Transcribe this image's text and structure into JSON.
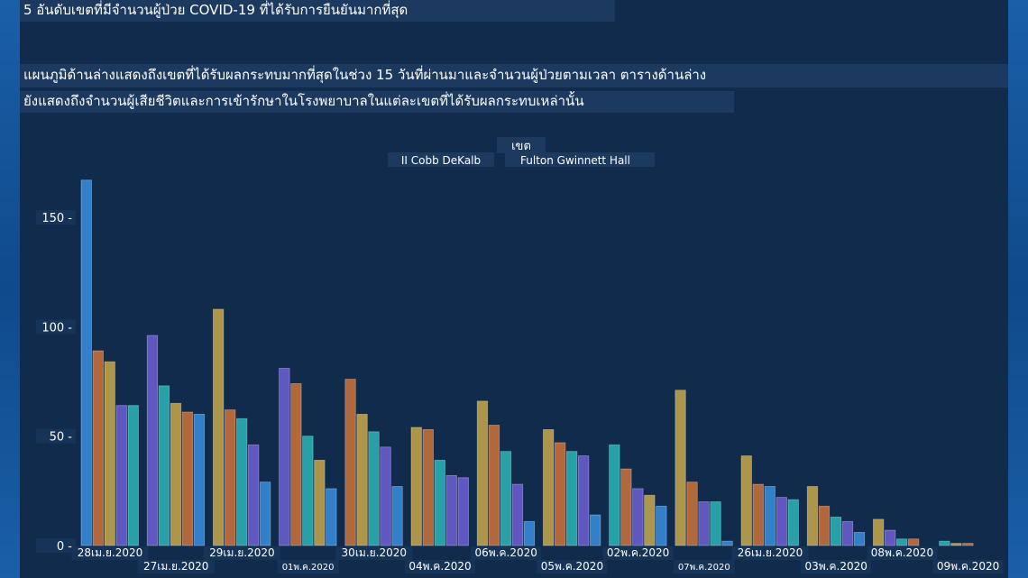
{
  "header": {
    "title": "5 อันดับเขตที่มีจำนวนผู้ป่วย COVID-19 ที่ได้รับการยืนยันมากที่สุด",
    "description_line1": "แผนภูมิด้านล่างแสดงถึงเขตที่ได้รับผลกระทบมากที่สุดในช่วง 15 วันที่ผ่านมาและจำนวนผู้ป่วยตามเวลา ตารางด้านล่าง",
    "description_line2": "ยังแสดงถึงจำนวนผู้เสียชีวิตและการเข้ารักษาในโรงพยาบาลในแต่ละเขตที่ได้รับผลกระทบเหล่านั้น"
  },
  "colors": {
    "blue": "#3a8fe0",
    "orange": "#d0733a",
    "yellow": "#c9a94a",
    "purple": "#6f5fd6",
    "teal": "#2bb5b8"
  },
  "chart_data": {
    "type": "bar",
    "legend_title": "เขต",
    "legend_labels": [
      "II Cobb DeKalb",
      "Fulton Gwinnett Hall"
    ],
    "legend_placement": "top-center",
    "ylim": [
      0,
      170
    ],
    "yticks": [
      0,
      50,
      100,
      150
    ],
    "grid": false,
    "categories": [
      "28เม.ย.2020",
      "27เม.ย.2020",
      "29เม.ย.2020",
      "01พ.ค.2020",
      "30เม.ย.2020",
      "04พ.ค.2020",
      "06พ.ค.2020",
      "05พ.ค.2020",
      "02พ.ค.2020",
      "07พ.ค.2020",
      "26เม.ย.2020",
      "03พ.ค.2020",
      "08พ.ค.2020",
      "09พ.ค.2020"
    ],
    "groups": [
      [
        {
          "c": "blue",
          "v": 167
        },
        {
          "c": "orange",
          "v": 89
        },
        {
          "c": "yellow",
          "v": 84
        },
        {
          "c": "purple",
          "v": 64
        },
        {
          "c": "teal",
          "v": 64
        }
      ],
      [
        {
          "c": "purple",
          "v": 96
        },
        {
          "c": "teal",
          "v": 73
        },
        {
          "c": "yellow",
          "v": 65
        },
        {
          "c": "orange",
          "v": 61
        },
        {
          "c": "blue",
          "v": 60
        }
      ],
      [
        {
          "c": "yellow",
          "v": 108
        },
        {
          "c": "orange",
          "v": 62
        },
        {
          "c": "teal",
          "v": 58
        },
        {
          "c": "purple",
          "v": 46
        },
        {
          "c": "blue",
          "v": 29
        }
      ],
      [
        {
          "c": "purple",
          "v": 81
        },
        {
          "c": "orange",
          "v": 74
        },
        {
          "c": "teal",
          "v": 50
        },
        {
          "c": "yellow",
          "v": 39
        },
        {
          "c": "blue",
          "v": 26
        }
      ],
      [
        {
          "c": "orange",
          "v": 76
        },
        {
          "c": "yellow",
          "v": 60
        },
        {
          "c": "teal",
          "v": 52
        },
        {
          "c": "purple",
          "v": 45
        },
        {
          "c": "blue",
          "v": 27
        }
      ],
      [
        {
          "c": "yellow",
          "v": 54
        },
        {
          "c": "orange",
          "v": 53
        },
        {
          "c": "teal",
          "v": 39
        },
        {
          "c": "purple",
          "v": 32
        },
        {
          "c": "purple",
          "v": 31
        }
      ],
      [
        {
          "c": "yellow",
          "v": 66
        },
        {
          "c": "orange",
          "v": 55
        },
        {
          "c": "teal",
          "v": 43
        },
        {
          "c": "purple",
          "v": 28
        },
        {
          "c": "blue",
          "v": 11
        }
      ],
      [
        {
          "c": "yellow",
          "v": 53
        },
        {
          "c": "orange",
          "v": 47
        },
        {
          "c": "teal",
          "v": 43
        },
        {
          "c": "purple",
          "v": 41
        },
        {
          "c": "blue",
          "v": 14
        }
      ],
      [
        {
          "c": "teal",
          "v": 46
        },
        {
          "c": "orange",
          "v": 35
        },
        {
          "c": "purple",
          "v": 26
        },
        {
          "c": "yellow",
          "v": 23
        },
        {
          "c": "blue",
          "v": 18
        }
      ],
      [
        {
          "c": "yellow",
          "v": 71
        },
        {
          "c": "orange",
          "v": 29
        },
        {
          "c": "purple",
          "v": 20
        },
        {
          "c": "teal",
          "v": 20
        },
        {
          "c": "blue",
          "v": 2
        }
      ],
      [
        {
          "c": "yellow",
          "v": 41
        },
        {
          "c": "orange",
          "v": 28
        },
        {
          "c": "blue",
          "v": 27
        },
        {
          "c": "purple",
          "v": 22
        },
        {
          "c": "teal",
          "v": 21
        }
      ],
      [
        {
          "c": "yellow",
          "v": 27
        },
        {
          "c": "orange",
          "v": 18
        },
        {
          "c": "teal",
          "v": 13
        },
        {
          "c": "purple",
          "v": 11
        },
        {
          "c": "blue",
          "v": 6
        }
      ],
      [
        {
          "c": "yellow",
          "v": 12
        },
        {
          "c": "purple",
          "v": 7
        },
        {
          "c": "teal",
          "v": 3
        },
        {
          "c": "orange",
          "v": 3
        }
      ],
      [
        {
          "c": "teal",
          "v": 2
        },
        {
          "c": "yellow",
          "v": 1
        },
        {
          "c": "orange",
          "v": 1
        }
      ]
    ]
  }
}
